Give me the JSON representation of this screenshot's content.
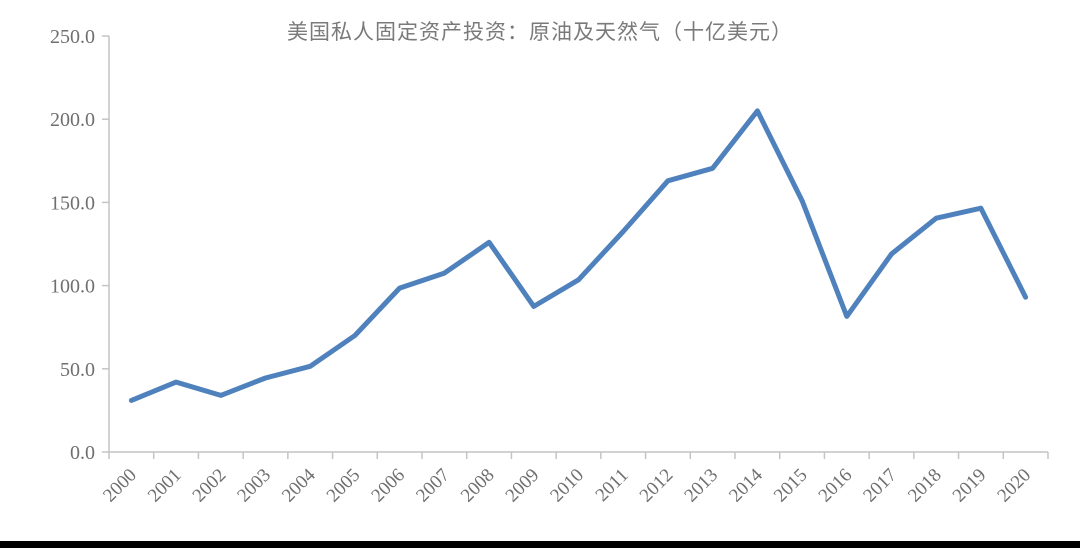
{
  "page": {
    "background_color": "#ffffff",
    "bottom_bar_color": "#000000"
  },
  "chart_data": {
    "type": "line",
    "title": "美国私人固定资产投资：原油及天然气（十亿美元）",
    "xlabel": "",
    "ylabel": "",
    "categories": [
      "2000",
      "2001",
      "2002",
      "2003",
      "2004",
      "2005",
      "2006",
      "2007",
      "2008",
      "2009",
      "2010",
      "2011",
      "2012",
      "2013",
      "2014",
      "2015",
      "2016",
      "2017",
      "2018",
      "2019",
      "2020"
    ],
    "values": [
      31,
      42,
      34,
      44.5,
      51.5,
      70,
      98.5,
      107.5,
      126,
      87.5,
      103.5,
      132.5,
      163,
      170.5,
      205,
      151,
      81.5,
      119,
      140.5,
      146.5,
      93
    ],
    "ylim": [
      0,
      250
    ],
    "y_ticks": [
      "0.0",
      "50.0",
      "100.0",
      "150.0",
      "200.0",
      "250.0"
    ],
    "y_tick_values": [
      0,
      50,
      100,
      150,
      200,
      250
    ],
    "grid": false,
    "legend": "none",
    "x_label_rotation": -45,
    "line_color": "#4f81bd",
    "axis_color": "#c4c4c4",
    "label_color": "#6f6f6f",
    "title_color": "#7a7a7a"
  }
}
